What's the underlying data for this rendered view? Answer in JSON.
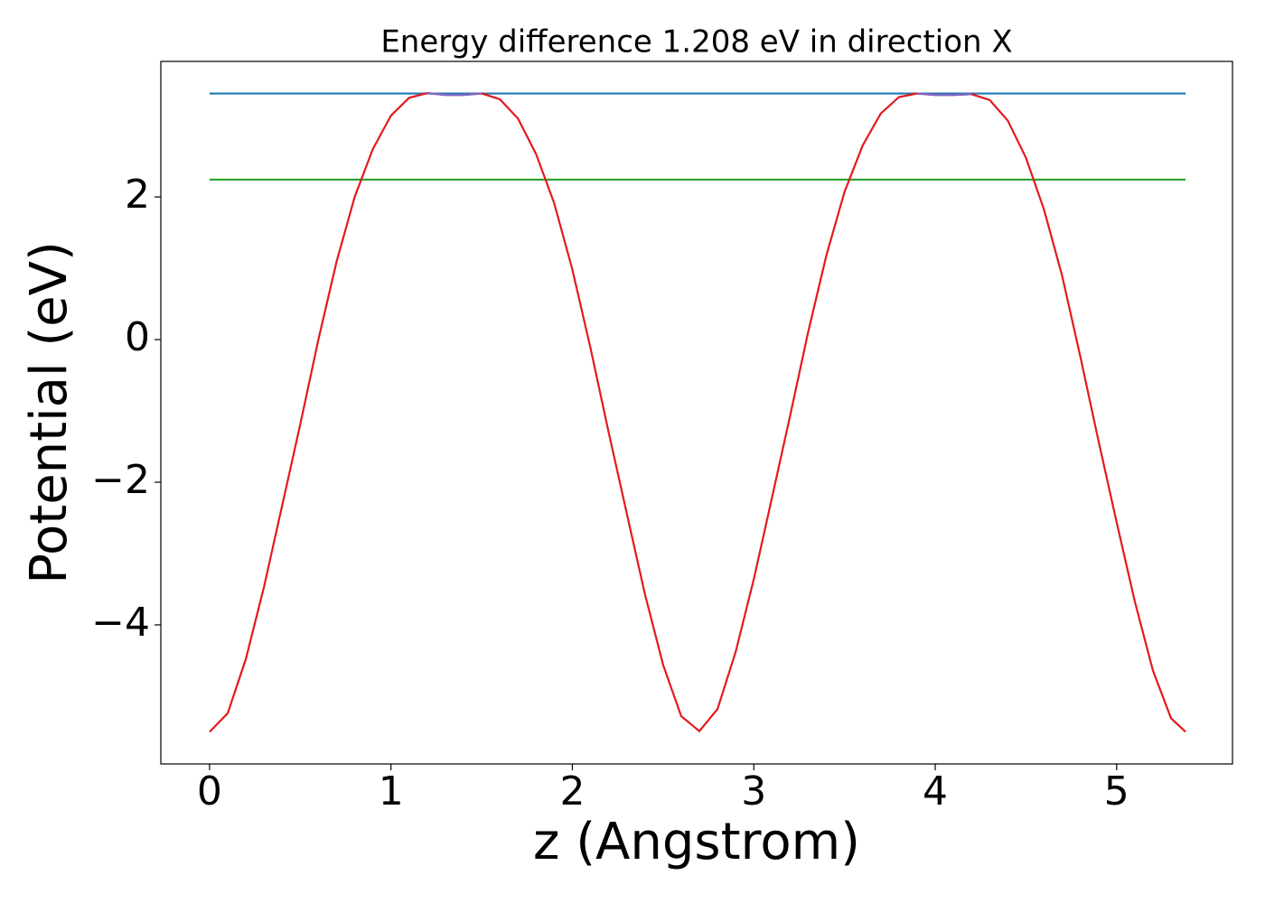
{
  "chart_data": {
    "type": "line",
    "title": "Energy difference 1.208 eV in direction X",
    "xlabel": "z (Angstrom)",
    "ylabel": "Potential (eV)",
    "xlim": [
      -0.2685,
      5.6385
    ],
    "ylim": [
      -5.95,
      3.9
    ],
    "xticks": [
      0,
      1,
      2,
      3,
      4,
      5
    ],
    "yticks": [
      {
        "value": -4,
        "label": "−4"
      },
      {
        "value": -2,
        "label": "−2"
      },
      0,
      2
    ],
    "series": [
      {
        "color": "#1f77b4",
        "x": [
          0,
          5.38
        ],
        "values": [
          3.45,
          3.45
        ]
      },
      {
        "color": "#2ca02c",
        "x": [
          0,
          5.38
        ],
        "values": [
          2.242,
          2.242
        ]
      },
      {
        "color": "#e31a1c",
        "x": [
          0,
          0.1,
          0.2,
          0.3,
          0.4,
          0.5,
          0.6,
          0.7,
          0.8,
          0.9,
          1.0,
          1.1,
          1.2,
          1.3,
          1.4,
          1.5,
          1.6,
          1.7,
          1.8,
          1.9,
          2.0,
          2.1,
          2.2,
          2.3,
          2.4,
          2.5,
          2.6,
          2.7,
          2.8,
          2.9,
          3.0,
          3.1,
          3.2,
          3.3,
          3.4,
          3.5,
          3.6,
          3.7,
          3.8,
          3.9,
          4.0,
          4.1,
          4.2,
          4.3,
          4.4,
          4.5,
          4.6,
          4.7,
          4.8,
          4.9,
          5.0,
          5.1,
          5.2,
          5.3,
          5.38
        ],
        "values": [
          -5.5,
          -5.24,
          -4.48,
          -3.47,
          -2.33,
          -1.19,
          0.0,
          1.09,
          2.0,
          2.67,
          3.14,
          3.39,
          3.455,
          3.43,
          3.43,
          3.45,
          3.37,
          3.1,
          2.6,
          1.91,
          0.98,
          -0.12,
          -1.3,
          -2.44,
          -3.57,
          -4.56,
          -5.28,
          -5.49,
          -5.18,
          -4.38,
          -3.36,
          -2.22,
          -1.07,
          0.11,
          1.18,
          2.07,
          2.72,
          3.17,
          3.4,
          3.45,
          3.43,
          3.43,
          3.44,
          3.36,
          3.07,
          2.55,
          1.82,
          0.89,
          -0.24,
          -1.42,
          -2.56,
          -3.67,
          -4.64,
          -5.31,
          -5.5
        ]
      },
      {
        "color": "#7b68c8",
        "x": [
          1.2,
          1.3,
          1.4,
          1.5,
          2.7,
          3.9,
          4.0,
          4.1,
          4.2
        ],
        "values": [
          3.455,
          3.43,
          3.43,
          3.45,
          null,
          3.45,
          3.43,
          3.43,
          3.44
        ]
      }
    ]
  }
}
